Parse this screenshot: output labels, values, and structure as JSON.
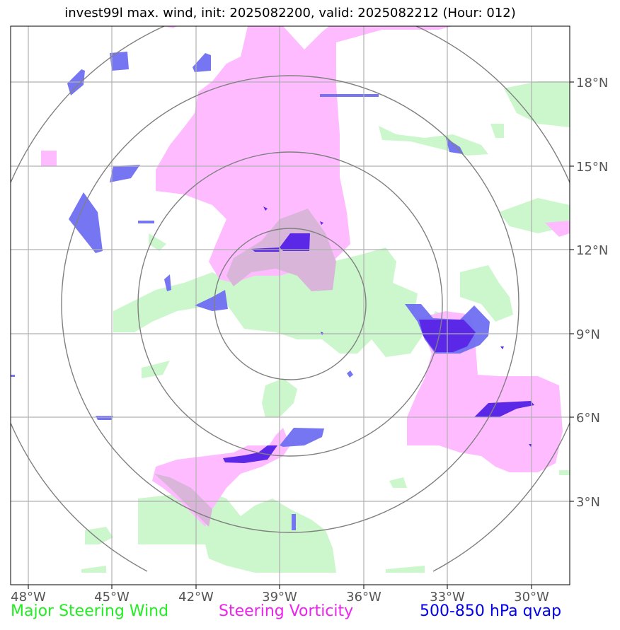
{
  "title": "invest99l max. wind, init: 2025082200, valid: 2025082212 (Hour: 012)",
  "axes": {
    "lon_labels": [
      "48°W",
      "45°W",
      "42°W",
      "39°W",
      "36°W",
      "33°W",
      "30°W"
    ],
    "lat_labels": [
      "18°N",
      "15°N",
      "12°N",
      "9°N",
      "6°N",
      "3°N"
    ]
  },
  "legend": {
    "wind": {
      "label": "Major Steering Wind",
      "color": "#22ee22"
    },
    "vorticity": {
      "label": "Steering Vorticity",
      "color": "#ee22ee"
    },
    "qvap": {
      "label": "500-850 hPa qvap",
      "color": "#0000ee"
    }
  },
  "colors": {
    "wind_fill": "#c8f5c8",
    "vorticity_fill": "#ffbbff",
    "qvap_fill": "#5a5af0",
    "qvap_dark": "#5b1fe8",
    "ring": "#808080",
    "grid": "#b0b0b0"
  }
}
